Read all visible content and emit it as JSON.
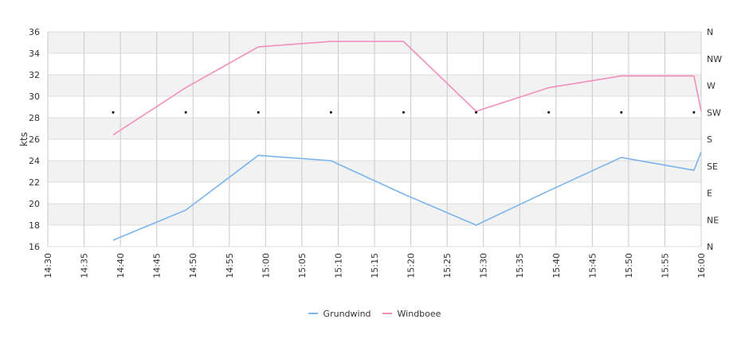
{
  "chart_data": {
    "type": "line",
    "ylabel": "kts",
    "ylim": [
      16,
      36
    ],
    "yticks": [
      "16",
      "18",
      "20",
      "22",
      "24",
      "26",
      "28",
      "30",
      "32",
      "34",
      "36"
    ],
    "xlim": [
      "14:30",
      "16:00"
    ],
    "xticks": [
      "14:30",
      "14:35",
      "14:40",
      "14:45",
      "14:50",
      "14:55",
      "15:00",
      "15:05",
      "15:10",
      "15:15",
      "15:20",
      "15:25",
      "15:30",
      "15:35",
      "15:40",
      "15:45",
      "15:50",
      "15:55",
      "16:00"
    ],
    "direction_axis": [
      "N",
      "NE",
      "E",
      "SE",
      "S",
      "SW",
      "W",
      "NW",
      "N"
    ],
    "direction_markers": {
      "times": [
        "14:39",
        "14:49",
        "14:59",
        "15:09",
        "15:19",
        "15:29",
        "15:39",
        "15:49",
        "15:59"
      ],
      "direction": "SW"
    },
    "series": [
      {
        "name": "Grundwind",
        "color": "#7cb5ec",
        "points": [
          [
            "14:39",
            16.6
          ],
          [
            "14:49",
            19.4
          ],
          [
            "14:59",
            24.5
          ],
          [
            "15:09",
            24.0
          ],
          [
            "15:19",
            20.9
          ],
          [
            "15:29",
            18.0
          ],
          [
            "15:39",
            21.2
          ],
          [
            "15:49",
            24.3
          ],
          [
            "15:59",
            23.1
          ],
          [
            "16:00",
            24.8
          ]
        ]
      },
      {
        "name": "Windboee",
        "color": "#f28fbb",
        "points": [
          [
            "14:39",
            26.4
          ],
          [
            "14:49",
            30.8
          ],
          [
            "14:59",
            34.6
          ],
          [
            "15:09",
            35.1
          ],
          [
            "15:19",
            35.1
          ],
          [
            "15:29",
            28.6
          ],
          [
            "15:39",
            30.8
          ],
          [
            "15:49",
            31.9
          ],
          [
            "15:59",
            31.9
          ],
          [
            "16:00",
            28.6
          ]
        ]
      }
    ],
    "grid": true,
    "legend": "bottom-center"
  }
}
